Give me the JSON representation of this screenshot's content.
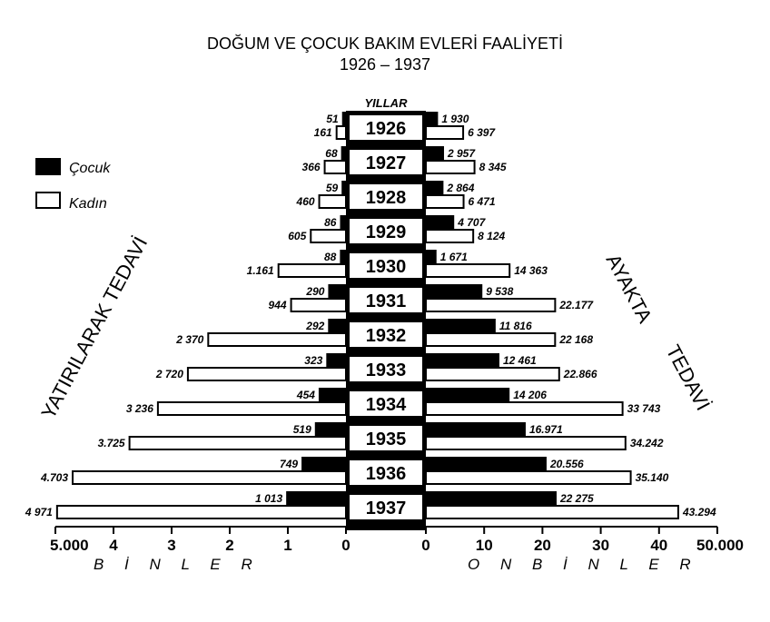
{
  "chart_data": {
    "type": "bar",
    "title": "DOĞUM  VE  ÇOCUK  BAKIM  EVLERİ  FAALİYETİ",
    "subtitle": "1926 – 1937",
    "center_label": "YILLAR",
    "categories": [
      "1926",
      "1927",
      "1928",
      "1929",
      "1930",
      "1931",
      "1932",
      "1933",
      "1934",
      "1935",
      "1936",
      "1937"
    ],
    "left_panel": {
      "side_label": "YATIRILARAK TEDAVİ",
      "unit_label": "B İ N L E R",
      "xlim": [
        0,
        5000
      ],
      "tick_values": [
        5000,
        4000,
        3000,
        2000,
        1000,
        0
      ],
      "tick_labels": [
        "5.000",
        "4",
        "3",
        "2",
        "1",
        "0"
      ],
      "series": [
        {
          "name": "Çocuk",
          "values": [
            51,
            68,
            59,
            86,
            88,
            290,
            292,
            323,
            454,
            519,
            749,
            1013
          ],
          "value_labels": [
            "51",
            "68",
            "59",
            "86",
            "88",
            "290",
            "292",
            "323",
            "454",
            "519",
            "749",
            "1 013"
          ]
        },
        {
          "name": "Kadın",
          "values": [
            161,
            366,
            460,
            605,
            1161,
            944,
            2370,
            2720,
            3236,
            3725,
            4703,
            4971
          ],
          "value_labels": [
            "161",
            "366",
            "460",
            "605",
            "1.161",
            "944",
            "2 370",
            "2 720",
            "3 236",
            "3.725",
            "4.703",
            "4 971"
          ]
        }
      ]
    },
    "right_panel": {
      "side_label_1": "AYAKTA",
      "side_label_2": "TEDAVİ",
      "unit_label": "O N  B İ N L E R",
      "xlim": [
        0,
        50000
      ],
      "tick_values": [
        0,
        10000,
        20000,
        30000,
        40000,
        50000
      ],
      "tick_labels": [
        "0",
        "10",
        "20",
        "30",
        "40",
        "50.000"
      ],
      "series": [
        {
          "name": "Çocuk",
          "values": [
            1930,
            2957,
            2864,
            4707,
            1671,
            9538,
            11816,
            12461,
            14206,
            16971,
            20556,
            22275
          ],
          "value_labels": [
            "1 930",
            "2 957",
            "2 864",
            "4 707",
            "1 671",
            "9 538",
            "11 816",
            "12 461",
            "14 206",
            "16.971",
            "20.556",
            "22 275"
          ]
        },
        {
          "name": "Kadın",
          "values": [
            6397,
            8345,
            6471,
            8124,
            14363,
            22177,
            22168,
            22866,
            33743,
            34242,
            35140,
            43294
          ],
          "value_labels": [
            "6 397",
            "8 345",
            "6 471",
            "8 124",
            "14 363",
            "22.177",
            "22 168",
            "22.866",
            "33 743",
            "34.242",
            "35.140",
            "43.294"
          ]
        }
      ]
    },
    "legend": [
      {
        "label": "Çocuk",
        "fill": "#000000"
      },
      {
        "label": "Kadın",
        "fill": "#ffffff"
      }
    ],
    "legend_position": "left",
    "grid": false
  }
}
